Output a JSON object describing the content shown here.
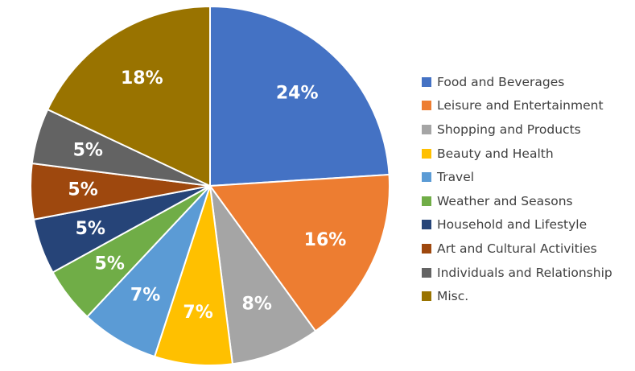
{
  "chart_data": {
    "type": "pie",
    "slices": [
      {
        "label": "Food and Beverages",
        "value": 24,
        "display": "24%",
        "color": "#4472C4"
      },
      {
        "label": "Leisure and Entertainment",
        "value": 16,
        "display": "16%",
        "color": "#ED7D31"
      },
      {
        "label": "Shopping and Products",
        "value": 8,
        "display": "8%",
        "color": "#A5A5A5"
      },
      {
        "label": "Beauty and Health",
        "value": 7,
        "display": "7%",
        "color": "#FFC000"
      },
      {
        "label": "Travel",
        "value": 7,
        "display": "7%",
        "color": "#5B9BD5"
      },
      {
        "label": "Weather and Seasons",
        "value": 5,
        "display": "5%",
        "color": "#70AD47"
      },
      {
        "label": "Household and Lifestyle",
        "value": 5,
        "display": "5%",
        "color": "#264478"
      },
      {
        "label": "Art and Cultural Activities",
        "value": 5,
        "display": "5%",
        "color": "#9E480E"
      },
      {
        "label": "Individuals and Relationship",
        "value": 5,
        "display": "5%",
        "color": "#636363"
      },
      {
        "label": "Misc.",
        "value": 18,
        "display": "18%",
        "color": "#997300"
      }
    ],
    "start_angle": "12 o'clock",
    "direction": "clockwise",
    "legend_position": "right"
  }
}
